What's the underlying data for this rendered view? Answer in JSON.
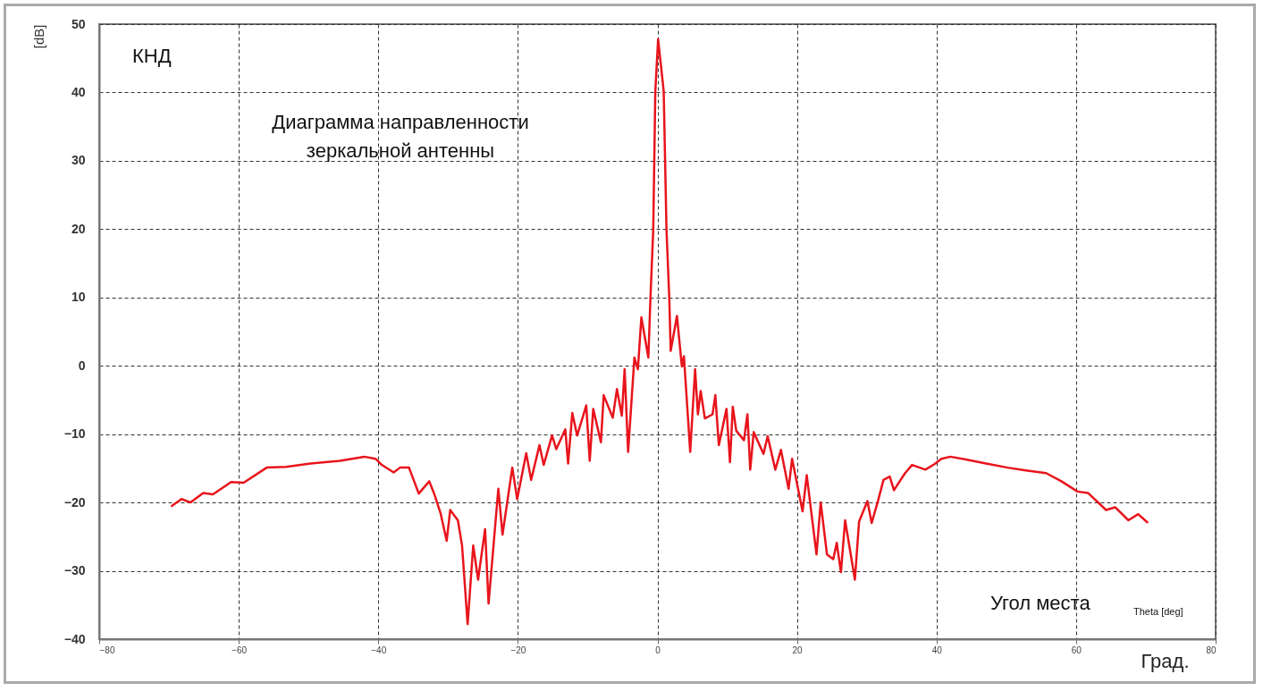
{
  "chart_data": {
    "type": "line",
    "title": "Диаграмма направленности зеркальной антенны",
    "xlabel": "Град.",
    "ylabel": "[dB]",
    "annotations": [
      "КНД",
      "Угол места",
      "Theta [deg]"
    ],
    "x": [
      -69.6,
      -68.2,
      -66.9,
      -65.1,
      -63.7,
      -61.1,
      -59.3,
      -56.0,
      -53.2,
      -49.7,
      -45.5,
      -42.0,
      -40.4,
      -39.5,
      -37.8,
      -36.9,
      -35.6,
      -34.2,
      -32.7,
      -32.0,
      -31.1,
      -30.2,
      -29.7,
      -28.6,
      -28.0,
      -27.2,
      -26.4,
      -25.7,
      -24.7,
      -24.2,
      -22.8,
      -22.2,
      -20.8,
      -20.1,
      -18.8,
      -18.1,
      -16.9,
      -16.3,
      -15.1,
      -14.5,
      -13.2,
      -12.8,
      -12.2,
      -11.5,
      -10.2,
      -9.7,
      -9.2,
      -8.1,
      -7.7,
      -6.4,
      -5.8,
      -5.1,
      -4.7,
      -4.2,
      -3.3,
      -2.8,
      -2.3,
      -1.3,
      -1.0,
      -0.6,
      -0.3,
      0.1,
      0.9,
      1.3,
      1.7,
      1.9,
      2.8,
      3.5,
      3.8,
      4.7,
      5.4,
      5.8,
      6.2,
      6.8,
      7.9,
      8.3,
      8.8,
      9.9,
      10.4,
      10.8,
      11.3,
      12.4,
      12.9,
      13.3,
      13.8,
      15.2,
      15.8,
      16.9,
      17.7,
      18.8,
      19.3,
      20.8,
      21.4,
      22.8,
      23.4,
      24.3,
      25.2,
      25.7,
      26.3,
      26.9,
      28.3,
      28.9,
      30.1,
      30.7,
      31.6,
      32.4,
      33.3,
      33.9,
      34.6,
      35.5,
      36.5,
      38.4,
      39.7,
      40.7,
      42.0,
      44.2,
      47.1,
      50.2,
      52.8,
      55.7,
      57.9,
      60.2,
      61.7,
      64.3,
      65.6,
      67.5,
      68.9,
      70.2
    ],
    "series": [
      {
        "color": "#e8141c",
        "values": [
          -20.5,
          -19.5,
          -20.0,
          -18.6,
          -18.8,
          -17.0,
          -17.1,
          -14.9,
          -14.8,
          -14.3,
          -13.9,
          -13.3,
          -13.6,
          -14.5,
          -15.6,
          -14.9,
          -14.9,
          -18.7,
          -16.9,
          -18.7,
          -21.5,
          -25.6,
          -21.1,
          -22.6,
          -26.3,
          -37.8,
          -26.3,
          -31.3,
          -23.9,
          -34.8,
          -18.0,
          -24.7,
          -14.9,
          -19.5,
          -12.8,
          -16.7,
          -11.6,
          -14.5,
          -10.2,
          -12.2,
          -9.3,
          -14.3,
          -6.9,
          -10.2,
          -5.8,
          -13.9,
          -6.3,
          -11.2,
          -4.3,
          -7.6,
          -3.4,
          -7.3,
          -0.5,
          -12.6,
          1.2,
          -0.5,
          7.1,
          1.2,
          9.9,
          19.9,
          40.2,
          47.8,
          40.2,
          19.9,
          9.9,
          2.2,
          7.3,
          -0.1,
          1.4,
          -12.6,
          -0.5,
          -7.1,
          -3.7,
          -7.7,
          -7.1,
          -4.3,
          -11.6,
          -6.3,
          -14.1,
          -6.0,
          -9.5,
          -10.9,
          -7.1,
          -15.2,
          -9.7,
          -12.9,
          -10.3,
          -15.2,
          -12.3,
          -18.0,
          -13.6,
          -21.3,
          -16.0,
          -27.6,
          -20.0,
          -27.6,
          -28.3,
          -25.9,
          -30.2,
          -22.6,
          -31.3,
          -22.8,
          -19.8,
          -23.0,
          -19.8,
          -16.7,
          -16.2,
          -18.2,
          -17.1,
          -15.7,
          -14.5,
          -15.2,
          -14.4,
          -13.6,
          -13.3,
          -13.7,
          -14.3,
          -14.9,
          -15.3,
          -15.7,
          -16.9,
          -18.4,
          -18.6,
          -21.1,
          -20.7,
          -22.6,
          -21.7,
          -22.9
        ]
      }
    ],
    "xlim": [
      -80,
      80
    ],
    "ylim": [
      -40,
      50
    ],
    "xticks": [
      -80,
      -60,
      -40,
      -20,
      0,
      20,
      40,
      60,
      80
    ],
    "yticks": [
      -40,
      -30,
      -20,
      -10,
      0,
      10,
      20,
      30,
      40,
      50
    ],
    "grid": true,
    "line_style": "solid"
  }
}
